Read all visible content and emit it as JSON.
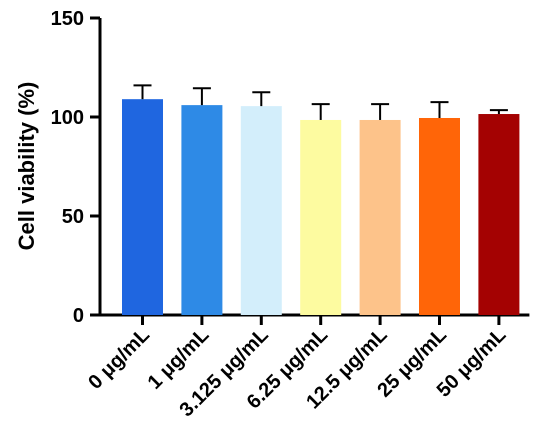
{
  "chart_data": {
    "type": "bar",
    "title": "",
    "xlabel": "",
    "ylabel": "Cell viability (%)",
    "ylim": [
      0,
      150
    ],
    "yticks": [
      0,
      50,
      100,
      150
    ],
    "grid": false,
    "categories": [
      "0 μg/mL",
      "1 μg/mL",
      "3.125 μg/mL",
      "6.25 μg/mL",
      "12.5 μg/mL",
      "25 μg/mL",
      "50 μg/mL"
    ],
    "values": [
      109,
      106,
      105.5,
      98.5,
      98.5,
      99.5,
      101.5
    ],
    "errors": [
      7,
      8.5,
      7,
      8,
      8,
      8,
      2
    ],
    "colors": [
      "#1f66e0",
      "#2e8ae6",
      "#d3eefb",
      "#fdfba0",
      "#fdc38a",
      "#ff6508",
      "#a40202"
    ]
  }
}
